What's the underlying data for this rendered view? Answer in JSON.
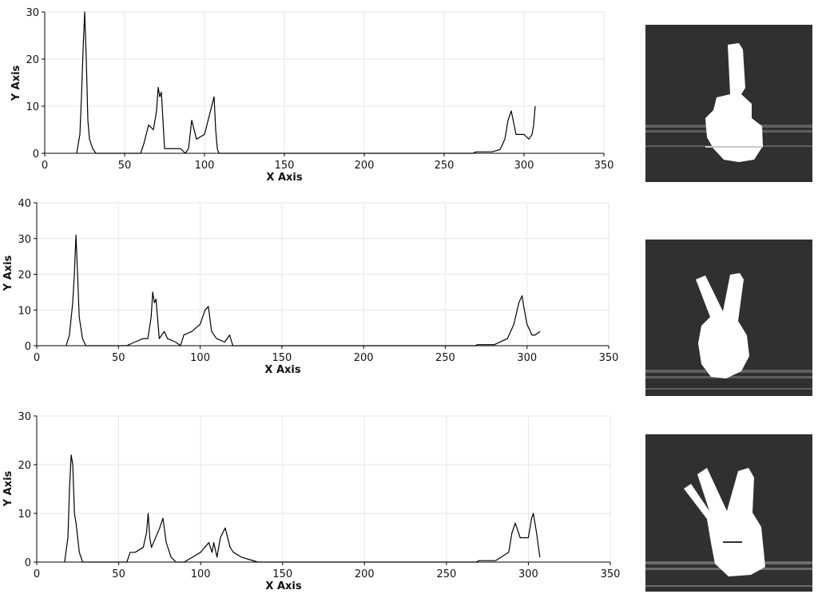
{
  "chart_data": [
    {
      "type": "line",
      "xlabel": "X Axis",
      "ylabel": "Y Axis",
      "xlim": [
        0,
        350
      ],
      "ylim": [
        0,
        30
      ],
      "xticks": [
        0,
        50,
        100,
        150,
        200,
        250,
        300,
        350
      ],
      "yticks": [
        0,
        10,
        20,
        30
      ],
      "grid": true,
      "x": [
        20,
        22,
        23,
        24,
        25,
        26,
        27,
        28,
        30,
        32,
        33,
        40,
        50,
        60,
        62,
        65,
        68,
        70,
        71,
        72,
        73,
        75,
        80,
        85,
        88,
        90,
        92,
        95,
        100,
        103,
        106,
        107,
        108,
        109,
        110,
        150,
        200,
        268,
        270,
        280,
        285,
        288,
        290,
        292,
        295,
        300,
        303,
        305,
        306,
        307
      ],
      "y": [
        0,
        4,
        12,
        22,
        30,
        20,
        7,
        3,
        1,
        0,
        0,
        0,
        0,
        0,
        2,
        6,
        5,
        9,
        14,
        12,
        13,
        1,
        1,
        1,
        0,
        1,
        7,
        3,
        4,
        8,
        12,
        5,
        1,
        0,
        0,
        0,
        0,
        0,
        0.3,
        0.3,
        0.8,
        3,
        7,
        9,
        4,
        4,
        3,
        4,
        6,
        10
      ]
    },
    {
      "type": "line",
      "xlabel": "X Axis",
      "ylabel": "Y Axis",
      "xlim": [
        0,
        350
      ],
      "ylim": [
        0,
        40
      ],
      "xticks": [
        0,
        50,
        100,
        150,
        200,
        250,
        300,
        350
      ],
      "yticks": [
        0,
        10,
        20,
        30,
        40
      ],
      "grid": true,
      "x": [
        18,
        20,
        22,
        23,
        24,
        25,
        26,
        28,
        30,
        40,
        55,
        60,
        65,
        68,
        70,
        71,
        72,
        73,
        75,
        78,
        80,
        85,
        88,
        90,
        95,
        100,
        103,
        105,
        107,
        110,
        115,
        118,
        120,
        125,
        130,
        150,
        200,
        268,
        270,
        280,
        288,
        292,
        295,
        297,
        298,
        300,
        303,
        305,
        308
      ],
      "y": [
        0,
        3,
        12,
        20,
        31,
        20,
        8,
        2,
        0,
        0,
        0,
        1,
        2,
        2,
        8,
        15,
        12,
        13,
        2,
        4,
        2,
        1,
        0,
        3,
        4,
        6,
        10,
        11,
        4,
        2,
        1,
        3,
        0,
        0,
        0,
        0,
        0,
        0,
        0.3,
        0.3,
        2,
        6,
        12,
        14,
        11,
        6,
        3,
        3,
        4
      ]
    },
    {
      "type": "line",
      "xlabel": "X Axis",
      "ylabel": "Y Axis",
      "xlim": [
        0,
        350
      ],
      "ylim": [
        0,
        30
      ],
      "xticks": [
        0,
        50,
        100,
        150,
        200,
        250,
        300,
        350
      ],
      "yticks": [
        0,
        10,
        20,
        30
      ],
      "grid": true,
      "x": [
        17,
        19,
        20,
        21,
        22,
        23,
        24,
        26,
        28,
        30,
        40,
        55,
        57,
        60,
        65,
        67,
        68,
        69,
        70,
        75,
        77,
        79,
        82,
        85,
        90,
        95,
        100,
        105,
        107,
        108,
        110,
        112,
        115,
        118,
        120,
        125,
        130,
        135,
        150,
        200,
        268,
        270,
        280,
        288,
        290,
        292,
        293,
        295,
        300,
        302,
        303,
        305,
        307
      ],
      "y": [
        0,
        5,
        15,
        22,
        20,
        10,
        8,
        2,
        0,
        0,
        0,
        0,
        2,
        2,
        3,
        6,
        10,
        5,
        3,
        7,
        9,
        4,
        1,
        0,
        0,
        1,
        2,
        4,
        2,
        4,
        1,
        5,
        7,
        3,
        2,
        1,
        0.5,
        0,
        0,
        0,
        0,
        0.3,
        0.3,
        2,
        6,
        8,
        7,
        5,
        5,
        9,
        10,
        6,
        1
      ]
    }
  ]
}
